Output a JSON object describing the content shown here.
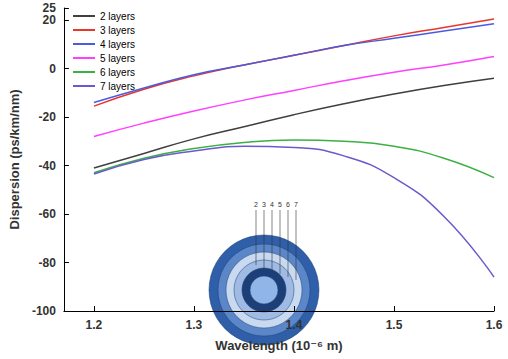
{
  "chart_data": {
    "type": "line",
    "x_label": "Wavelength (10⁻⁶ m)",
    "y_label": "Dispersion (ps/km/nm)",
    "x": [
      1.2,
      1.25,
      1.3,
      1.35,
      1.4,
      1.45,
      1.5,
      1.55,
      1.6
    ],
    "series": [
      {
        "name": "2 layers",
        "color": "#404040",
        "values": [
          -41,
          -35,
          -29,
          -24,
          -19,
          -14.5,
          -10.5,
          -7,
          -4
        ]
      },
      {
        "name": "3 layers",
        "color": "#e8362a",
        "values": [
          -15.5,
          -8.5,
          -3,
          1.5,
          5.5,
          9.5,
          13.5,
          17,
          20.5
        ]
      },
      {
        "name": "4 layers",
        "color": "#4a5be0",
        "values": [
          -14,
          -8,
          -2.5,
          1.5,
          5.5,
          9.5,
          12.5,
          15.5,
          18.5
        ]
      },
      {
        "name": "5 layers",
        "color": "#ff40ff",
        "values": [
          -28,
          -22.5,
          -17.5,
          -13,
          -9,
          -5,
          -1.5,
          1.5,
          5
        ]
      },
      {
        "name": "6 layers",
        "color": "#3cb043",
        "values": [
          -43,
          -37,
          -33,
          -30.5,
          -29.5,
          -30,
          -32,
          -37,
          -45
        ]
      },
      {
        "name": "7 layers",
        "color": "#6a5acd",
        "values": [
          -43.5,
          -37.5,
          -34,
          -32,
          -32.5,
          -36,
          -45,
          -61,
          -86
        ]
      }
    ],
    "xlim": [
      1.17,
      1.6
    ],
    "xticks": [
      1.2,
      1.3,
      1.4,
      1.5,
      1.6
    ],
    "ylim": [
      -100,
      25
    ],
    "yticks": [
      -100,
      -80,
      -60,
      -40,
      -20,
      0,
      20
    ],
    "grid": false,
    "legend": "upper left",
    "annotations": [
      "2",
      "3",
      "4",
      "5",
      "6",
      "7"
    ]
  }
}
